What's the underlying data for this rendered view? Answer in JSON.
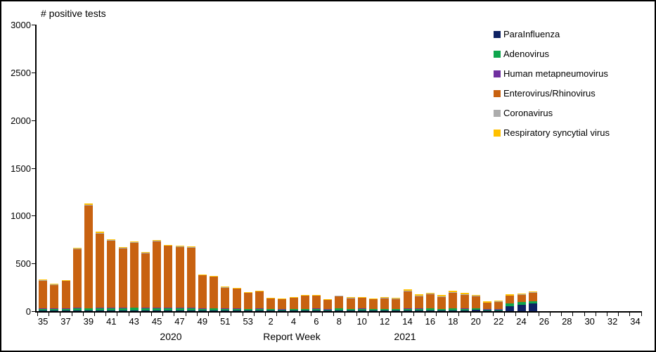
{
  "chart_data": {
    "type": "bar",
    "stacked": true,
    "title": "# positive tests",
    "xlabel": "Report Week",
    "ylim": [
      0,
      3000
    ],
    "y_ticks": [
      0,
      500,
      1000,
      1500,
      2000,
      2500,
      3000
    ],
    "grid": false,
    "legend_position": "top-right",
    "year_labels": [
      "2020",
      "2021"
    ],
    "series_keys": [
      "parainfluenza",
      "adenovirus",
      "hmpv",
      "entero_rhino",
      "coronavirus",
      "rsv"
    ],
    "series": [
      {
        "key": "parainfluenza",
        "name": "ParaInfluenza",
        "color": "#0E2263"
      },
      {
        "key": "adenovirus",
        "name": "Adenovirus",
        "color": "#0FA64D"
      },
      {
        "key": "hmpv",
        "name": "Human metapneumovirus",
        "color": "#7030A0"
      },
      {
        "key": "entero_rhino",
        "name": "Enterovirus/Rhinovirus",
        "color": "#C86211"
      },
      {
        "key": "coronavirus",
        "name": "Coronavirus",
        "color": "#ACACAC"
      },
      {
        "key": "rsv",
        "name": "Respiratory syncytial virus",
        "color": "#FFC000"
      }
    ],
    "weeks": [
      {
        "year": 2020,
        "week": 35,
        "label": "35",
        "values": [
          5,
          18,
          4,
          291,
          4,
          8
        ]
      },
      {
        "year": 2020,
        "week": 36,
        "label": "",
        "values": [
          8,
          15,
          5,
          248,
          3,
          6
        ]
      },
      {
        "year": 2020,
        "week": 37,
        "label": "37",
        "values": [
          6,
          18,
          7,
          283,
          4,
          7
        ]
      },
      {
        "year": 2020,
        "week": 38,
        "label": "",
        "values": [
          5,
          25,
          6,
          616,
          5,
          8
        ]
      },
      {
        "year": 2020,
        "week": 39,
        "label": "39",
        "values": [
          5,
          22,
          6,
          1070,
          12,
          15
        ]
      },
      {
        "year": 2020,
        "week": 40,
        "label": "",
        "values": [
          6,
          25,
          6,
          777,
          6,
          10
        ]
      },
      {
        "year": 2020,
        "week": 41,
        "label": "41",
        "values": [
          8,
          25,
          6,
          698,
          5,
          8
        ]
      },
      {
        "year": 2020,
        "week": 42,
        "label": "",
        "values": [
          6,
          22,
          6,
          623,
          5,
          8
        ]
      },
      {
        "year": 2020,
        "week": 43,
        "label": "43",
        "values": [
          6,
          28,
          6,
          677,
          5,
          8
        ]
      },
      {
        "year": 2020,
        "week": 44,
        "label": "",
        "values": [
          8,
          20,
          8,
          571,
          5,
          8
        ]
      },
      {
        "year": 2020,
        "week": 45,
        "label": "45",
        "values": [
          6,
          22,
          8,
          694,
          5,
          10
        ]
      },
      {
        "year": 2020,
        "week": 46,
        "label": "",
        "values": [
          6,
          20,
          8,
          648,
          5,
          8
        ]
      },
      {
        "year": 2020,
        "week": 47,
        "label": "47",
        "values": [
          6,
          22,
          6,
          638,
          5,
          8
        ]
      },
      {
        "year": 2020,
        "week": 48,
        "label": "",
        "values": [
          5,
          22,
          8,
          630,
          5,
          10
        ]
      },
      {
        "year": 2020,
        "week": 49,
        "label": "49",
        "values": [
          5,
          20,
          6,
          342,
          4,
          8
        ]
      },
      {
        "year": 2020,
        "week": 50,
        "label": "",
        "values": [
          5,
          22,
          5,
          326,
          4,
          8
        ]
      },
      {
        "year": 2020,
        "week": 51,
        "label": "51",
        "values": [
          5,
          18,
          5,
          218,
          3,
          6
        ]
      },
      {
        "year": 2020,
        "week": 52,
        "label": "",
        "values": [
          5,
          20,
          5,
          206,
          3,
          6
        ]
      },
      {
        "year": 2020,
        "week": 53,
        "label": "53",
        "values": [
          5,
          15,
          4,
          168,
          3,
          5
        ]
      },
      {
        "year": 2021,
        "week": 1,
        "label": "",
        "values": [
          5,
          18,
          4,
          179,
          3,
          6
        ]
      },
      {
        "year": 2021,
        "week": 2,
        "label": "2",
        "values": [
          4,
          15,
          3,
          110,
          3,
          5
        ]
      },
      {
        "year": 2021,
        "week": 3,
        "label": "",
        "values": [
          4,
          12,
          3,
          103,
          3,
          5
        ]
      },
      {
        "year": 2021,
        "week": 4,
        "label": "4",
        "values": [
          5,
          15,
          3,
          116,
          3,
          5
        ]
      },
      {
        "year": 2021,
        "week": 5,
        "label": "",
        "values": [
          5,
          16,
          3,
          136,
          4,
          6
        ]
      },
      {
        "year": 2021,
        "week": 6,
        "label": "6",
        "values": [
          5,
          18,
          3,
          134,
          4,
          6
        ]
      },
      {
        "year": 2021,
        "week": 7,
        "label": "",
        "values": [
          4,
          14,
          3,
          96,
          3,
          5
        ]
      },
      {
        "year": 2021,
        "week": 8,
        "label": "8",
        "values": [
          8,
          18,
          3,
          126,
          4,
          6
        ]
      },
      {
        "year": 2021,
        "week": 9,
        "label": "",
        "values": [
          5,
          15,
          3,
          112,
          4,
          6
        ]
      },
      {
        "year": 2021,
        "week": 10,
        "label": "10",
        "values": [
          8,
          15,
          3,
          112,
          4,
          8
        ]
      },
      {
        "year": 2021,
        "week": 11,
        "label": "",
        "values": [
          5,
          15,
          3,
          100,
          4,
          8
        ]
      },
      {
        "year": 2021,
        "week": 12,
        "label": "12",
        "values": [
          6,
          15,
          3,
          108,
          5,
          8
        ]
      },
      {
        "year": 2021,
        "week": 13,
        "label": "",
        "values": [
          5,
          15,
          3,
          102,
          5,
          10
        ]
      },
      {
        "year": 2021,
        "week": 14,
        "label": "14",
        "values": [
          5,
          20,
          3,
          175,
          12,
          15
        ]
      },
      {
        "year": 2021,
        "week": 15,
        "label": "",
        "values": [
          5,
          18,
          3,
          129,
          8,
          12
        ]
      },
      {
        "year": 2021,
        "week": 16,
        "label": "16",
        "values": [
          10,
          16,
          3,
          146,
          8,
          12
        ]
      },
      {
        "year": 2021,
        "week": 17,
        "label": "",
        "values": [
          5,
          16,
          3,
          126,
          8,
          12
        ]
      },
      {
        "year": 2021,
        "week": 18,
        "label": "18",
        "values": [
          8,
          18,
          3,
          163,
          8,
          15
        ]
      },
      {
        "year": 2021,
        "week": 19,
        "label": "",
        "values": [
          6,
          18,
          3,
          143,
          8,
          12
        ]
      },
      {
        "year": 2021,
        "week": 20,
        "label": "20",
        "values": [
          12,
          15,
          3,
          124,
          6,
          10
        ]
      },
      {
        "year": 2021,
        "week": 21,
        "label": "",
        "values": [
          5,
          12,
          2,
          68,
          5,
          8
        ]
      },
      {
        "year": 2021,
        "week": 22,
        "label": "22",
        "values": [
          6,
          12,
          2,
          76,
          6,
          8
        ]
      },
      {
        "year": 2021,
        "week": 23,
        "label": "",
        "values": [
          50,
          28,
          3,
          79,
          5,
          10
        ]
      },
      {
        "year": 2021,
        "week": 24,
        "label": "24",
        "values": [
          65,
          28,
          3,
          74,
          5,
          10
        ]
      },
      {
        "year": 2021,
        "week": 25,
        "label": "",
        "values": [
          80,
          22,
          3,
          88,
          5,
          12
        ]
      },
      {
        "year": 2021,
        "week": 26,
        "label": "26",
        "values": [
          0,
          0,
          0,
          0,
          0,
          0
        ]
      },
      {
        "year": 2021,
        "week": 27,
        "label": "",
        "values": [
          0,
          0,
          0,
          0,
          0,
          0
        ]
      },
      {
        "year": 2021,
        "week": 28,
        "label": "28",
        "values": [
          0,
          0,
          0,
          0,
          0,
          0
        ]
      },
      {
        "year": 2021,
        "week": 29,
        "label": "",
        "values": [
          0,
          0,
          0,
          0,
          0,
          0
        ]
      },
      {
        "year": 2021,
        "week": 30,
        "label": "30",
        "values": [
          0,
          0,
          0,
          0,
          0,
          0
        ]
      },
      {
        "year": 2021,
        "week": 31,
        "label": "",
        "values": [
          0,
          0,
          0,
          0,
          0,
          0
        ]
      },
      {
        "year": 2021,
        "week": 32,
        "label": "32",
        "values": [
          0,
          0,
          0,
          0,
          0,
          0
        ]
      },
      {
        "year": 2021,
        "week": 33,
        "label": "",
        "values": [
          0,
          0,
          0,
          0,
          0,
          0
        ]
      },
      {
        "year": 2021,
        "week": 34,
        "label": "34",
        "values": [
          0,
          0,
          0,
          0,
          0,
          0
        ]
      }
    ]
  }
}
